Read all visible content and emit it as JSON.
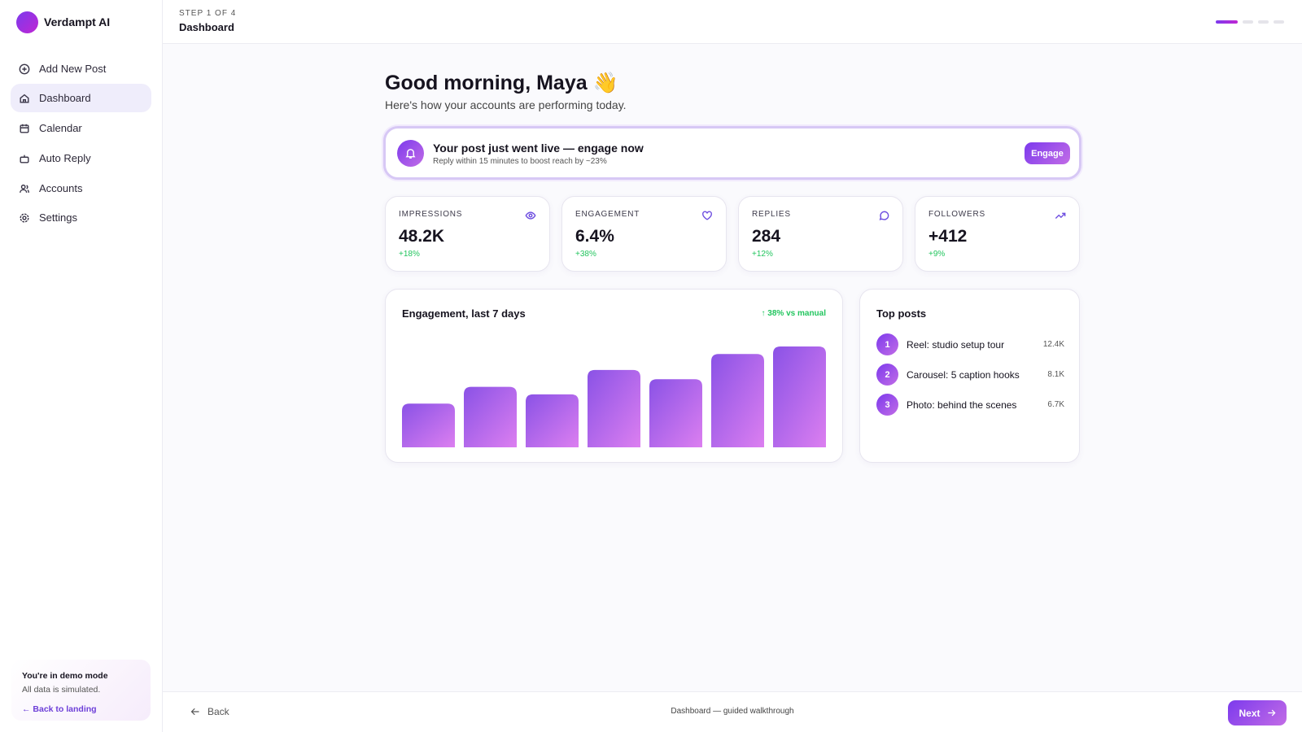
{
  "sidebar": {
    "brand": "Verdampt AI",
    "nav": [
      "Add New Post",
      "Dashboard",
      "Calendar",
      "Auto Reply",
      "Accounts",
      "Settings"
    ],
    "demo": {
      "title": "You're in demo mode",
      "text": "All data is simulated.",
      "link": "← Back to landing"
    }
  },
  "header": {
    "step": "STEP 1 OF 4",
    "title": "Dashboard"
  },
  "greeting": {
    "title": "Good morning, Maya 👋",
    "subtitle": "Here's how your accounts are performing today."
  },
  "alert": {
    "title": "Your post just went live — engage now",
    "text": "Reply within 15 minutes to boost reach by ~23%",
    "button": "Engage"
  },
  "stats": [
    {
      "label": "IMPRESSIONS",
      "value": "48.2K",
      "change": "+18%"
    },
    {
      "label": "ENGAGEMENT",
      "value": "6.4%",
      "change": "+38%"
    },
    {
      "label": "REPLIES",
      "value": "284",
      "change": "+12%"
    },
    {
      "label": "FOLLOWERS",
      "value": "+412",
      "change": "+9%"
    }
  ],
  "chart_data": {
    "type": "bar",
    "title": "Engagement, last 7 days",
    "annotation": "↑ 38% vs manual",
    "values": [
      52,
      72,
      63,
      92,
      81,
      111,
      120
    ]
  },
  "top_posts": {
    "title": "Top posts",
    "items": [
      {
        "rank": "1",
        "name": "Reel: studio setup tour",
        "value": "12.4K"
      },
      {
        "rank": "2",
        "name": "Carousel: 5 caption hooks",
        "value": "8.1K"
      },
      {
        "rank": "3",
        "name": "Photo: behind the scenes",
        "value": "6.7K"
      }
    ]
  },
  "footer": {
    "back": "Back",
    "caption": "Dashboard — guided walkthrough",
    "next": "Next"
  }
}
